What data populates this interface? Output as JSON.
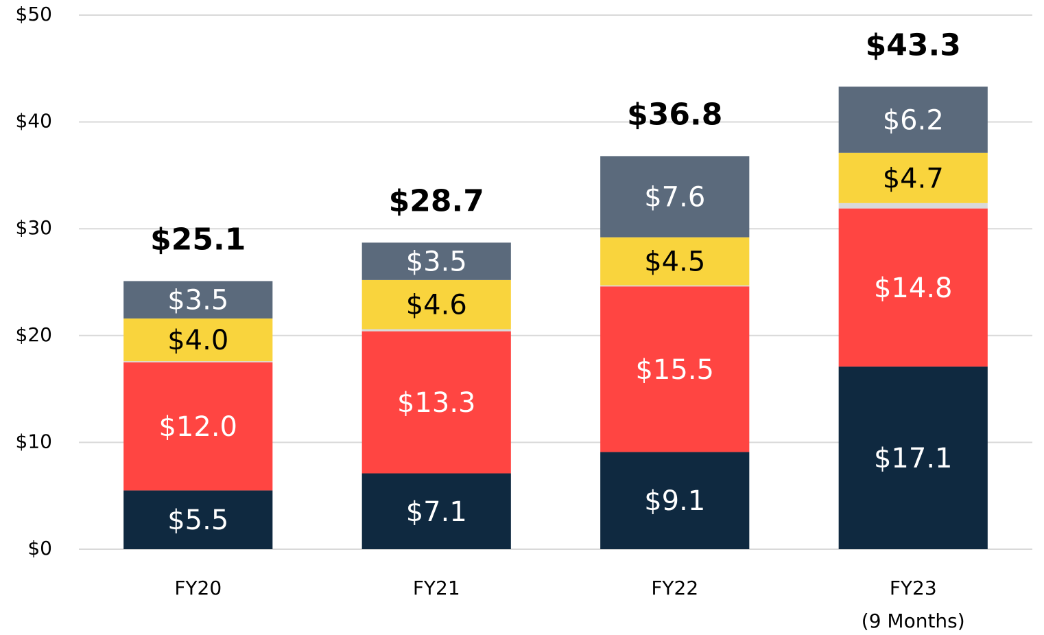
{
  "chart_data": {
    "type": "stacked_bar",
    "categories": [
      "FY20",
      "FY21",
      "FY22",
      "FY23\n(9 Months)"
    ],
    "series": [
      {
        "color": "#0f2940",
        "label_color": "#ffffff",
        "values": [
          5.5,
          7.1,
          9.1,
          17.1
        ],
        "value_labels": [
          "$5.5",
          "$7.1",
          "$9.1",
          "$17.1"
        ]
      },
      {
        "color": "#ff4542",
        "label_color": "#ffffff",
        "values": [
          12.0,
          13.3,
          15.5,
          14.8
        ],
        "value_labels": [
          "$12.0",
          "$13.3",
          "$15.5",
          "$14.8"
        ]
      },
      {
        "color": "#d9d9d9",
        "values": [
          0.1,
          0.2,
          0.1,
          0.5
        ]
      },
      {
        "color": "#f9d43d",
        "label_color": "#000000",
        "values": [
          4.0,
          4.6,
          4.5,
          4.7
        ],
        "value_labels": [
          "$4.0",
          "$4.6",
          "$4.5",
          "$4.7"
        ]
      },
      {
        "color": "#5b6a7c",
        "label_color": "#ffffff",
        "values": [
          3.5,
          3.5,
          7.6,
          6.2
        ],
        "value_labels": [
          "$3.5",
          "$3.5",
          "$7.6",
          "$6.2"
        ]
      }
    ],
    "totals": [
      25.1,
      28.7,
      36.8,
      43.3
    ],
    "total_labels": [
      "$25.1",
      "$28.7",
      "$36.8",
      "$43.3"
    ],
    "ylim": [
      0,
      50
    ],
    "yticks": [
      {
        "value": 0,
        "label": "$0"
      },
      {
        "value": 10,
        "label": "$10"
      },
      {
        "value": 20,
        "label": "$20"
      },
      {
        "value": 30,
        "label": "$30"
      },
      {
        "value": 40,
        "label": "$40"
      },
      {
        "value": 50,
        "label": "$50"
      }
    ],
    "grid": true
  }
}
